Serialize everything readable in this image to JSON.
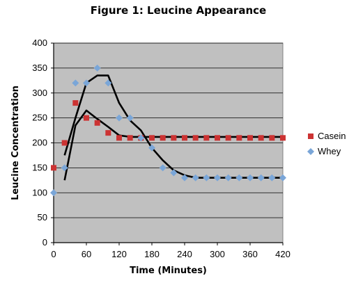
{
  "chart_data": {
    "type": "scatter",
    "title": "Figure 1: Leucine Appearance",
    "xlabel": "Time (Minutes)",
    "ylabel": "Leucine Concentration",
    "xlim": [
      0,
      420
    ],
    "ylim": [
      0,
      400
    ],
    "x_ticks": [
      0,
      60,
      120,
      180,
      240,
      300,
      360,
      420
    ],
    "y_ticks": [
      0,
      50,
      100,
      150,
      200,
      250,
      300,
      350,
      400
    ],
    "grid": true,
    "legend_position": "right",
    "plot_background": "#c0c0c0",
    "series": [
      {
        "name": "Casein",
        "marker": "square",
        "color": "#cc3333",
        "points": [
          [
            0,
            150
          ],
          [
            20,
            200
          ],
          [
            40,
            280
          ],
          [
            60,
            250
          ],
          [
            80,
            240
          ],
          [
            100,
            220
          ],
          [
            120,
            210
          ],
          [
            140,
            210
          ],
          [
            160,
            210
          ],
          [
            180,
            210
          ],
          [
            200,
            210
          ],
          [
            220,
            210
          ],
          [
            240,
            210
          ],
          [
            260,
            210
          ],
          [
            280,
            210
          ],
          [
            300,
            210
          ],
          [
            320,
            210
          ],
          [
            340,
            210
          ],
          [
            360,
            210
          ],
          [
            380,
            210
          ],
          [
            400,
            210
          ],
          [
            420,
            210
          ]
        ],
        "trend": [
          [
            20,
            125
          ],
          [
            40,
            235
          ],
          [
            60,
            265
          ],
          [
            80,
            248
          ],
          [
            100,
            232
          ],
          [
            120,
            215
          ],
          [
            140,
            212
          ],
          [
            160,
            212
          ],
          [
            200,
            212
          ],
          [
            260,
            212
          ],
          [
            320,
            212
          ],
          [
            380,
            212
          ],
          [
            420,
            212
          ]
        ]
      },
      {
        "name": "Whey",
        "marker": "diamond",
        "color": "#7aa6d8",
        "points": [
          [
            0,
            100
          ],
          [
            20,
            150
          ],
          [
            40,
            320
          ],
          [
            60,
            320
          ],
          [
            80,
            350
          ],
          [
            100,
            320
          ],
          [
            120,
            250
          ],
          [
            140,
            250
          ],
          [
            160,
            210
          ],
          [
            180,
            190
          ],
          [
            200,
            150
          ],
          [
            220,
            140
          ],
          [
            240,
            130
          ],
          [
            260,
            130
          ],
          [
            280,
            130
          ],
          [
            300,
            130
          ],
          [
            320,
            130
          ],
          [
            340,
            130
          ],
          [
            360,
            130
          ],
          [
            380,
            130
          ],
          [
            400,
            130
          ],
          [
            420,
            130
          ]
        ],
        "trend": [
          [
            20,
            175
          ],
          [
            40,
            250
          ],
          [
            60,
            320
          ],
          [
            80,
            335
          ],
          [
            100,
            335
          ],
          [
            120,
            280
          ],
          [
            140,
            245
          ],
          [
            160,
            225
          ],
          [
            180,
            190
          ],
          [
            200,
            165
          ],
          [
            220,
            145
          ],
          [
            240,
            135
          ],
          [
            260,
            130
          ],
          [
            300,
            130
          ],
          [
            360,
            130
          ],
          [
            420,
            130
          ]
        ]
      }
    ]
  }
}
